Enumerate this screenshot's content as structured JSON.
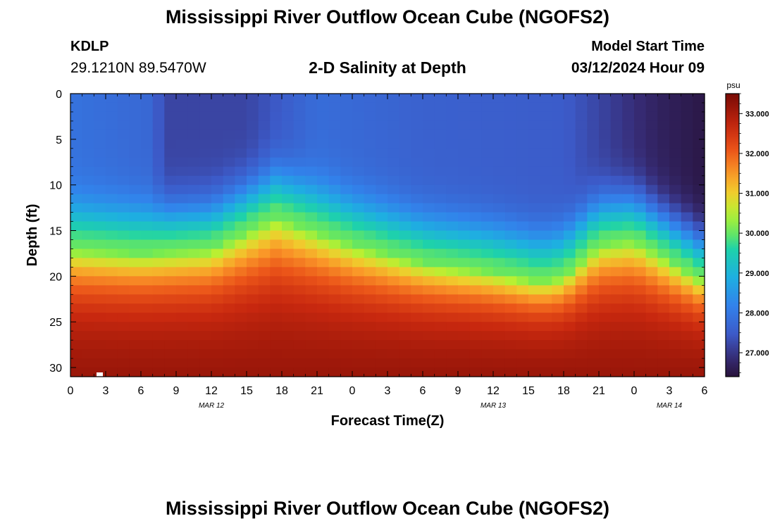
{
  "header": {
    "title": "Mississippi River Outflow Ocean Cube (NGOFS2)",
    "station_id": "KDLP",
    "station_coords": "29.1210N  89.5470W",
    "model_start_label": "Model Start Time",
    "model_start_value": "03/12/2024 Hour 09"
  },
  "footer": {
    "title": "Mississippi River Outflow Ocean Cube (NGOFS2)"
  },
  "chart_data": {
    "type": "heatmap",
    "title": "2-D Salinity at Depth",
    "xlabel": "Forecast Time(Z)",
    "ylabel": "Depth (ft)",
    "x_range_hours": [
      0,
      54
    ],
    "x_ticks": [
      "0",
      "3",
      "6",
      "9",
      "12",
      "15",
      "18",
      "21",
      "0",
      "3",
      "6",
      "9",
      "12",
      "15",
      "18",
      "21",
      "0",
      "3",
      "6"
    ],
    "date_labels": [
      {
        "hour": 12,
        "text": "MAR 12"
      },
      {
        "hour": 36,
        "text": "MAR 13"
      },
      {
        "hour": 51,
        "text": "MAR 14"
      }
    ],
    "ylim": [
      0,
      31
    ],
    "y_ticks": [
      0,
      5,
      10,
      15,
      20,
      25,
      30
    ],
    "colorbar": {
      "unit": "psu",
      "range": [
        26.4,
        33.5
      ],
      "ticks": [
        "27.000",
        "28.000",
        "29.000",
        "30.000",
        "31.000",
        "32.000",
        "33.000"
      ],
      "tick_values": [
        27,
        28,
        29,
        30,
        31,
        32,
        33
      ]
    },
    "surface_salinity_by_hour": [
      {
        "hour": 0,
        "psu": 27.9
      },
      {
        "hour": 7,
        "psu": 27.7
      },
      {
        "hour": 8,
        "psu": 27.2
      },
      {
        "hour": 15,
        "psu": 27.2
      },
      {
        "hour": 21,
        "psu": 27.8
      },
      {
        "hour": 30,
        "psu": 27.6
      },
      {
        "hour": 42,
        "psu": 27.5
      },
      {
        "hour": 47,
        "psu": 27.0
      },
      {
        "hour": 50,
        "psu": 26.7
      },
      {
        "hour": 54,
        "psu": 26.5
      }
    ],
    "isohaline_30psu_depth_ft": [
      {
        "hour": 0,
        "depth": 17.0
      },
      {
        "hour": 6,
        "depth": 17.5
      },
      {
        "hour": 12,
        "depth": 17.0
      },
      {
        "hour": 17.5,
        "depth": 13.5
      },
      {
        "hour": 24,
        "depth": 16.5
      },
      {
        "hour": 30,
        "depth": 18.5
      },
      {
        "hour": 36,
        "depth": 19.5
      },
      {
        "hour": 40,
        "depth": 20.5
      },
      {
        "hour": 42,
        "depth": 20.0
      },
      {
        "hour": 45,
        "depth": 16.5
      },
      {
        "hour": 48,
        "depth": 16.0
      },
      {
        "hour": 54,
        "depth": 20.5
      }
    ],
    "bottom_salinity_psu": 33.3
  }
}
